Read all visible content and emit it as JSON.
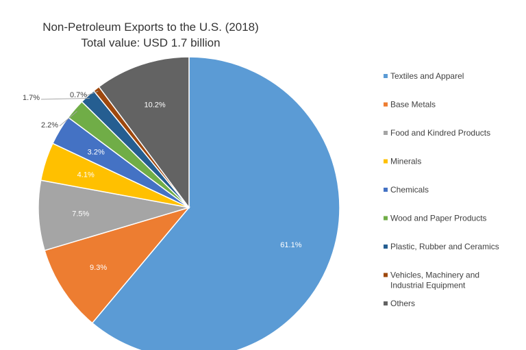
{
  "chart_data": {
    "type": "pie",
    "title": "Non-Petroleum Exports to the U.S. (2018)",
    "subtitle": "Total value: USD 1.7 billion",
    "legend_position": "right",
    "start_angle_deg": 0,
    "direction": "clockwise",
    "slices": [
      {
        "label": "Textiles and Apparel",
        "value": 61.1,
        "display": "61.1%",
        "color": "#5B9BD5",
        "label_inside": true
      },
      {
        "label": "Base Metals",
        "value": 9.3,
        "display": "9.3%",
        "color": "#ED7D31",
        "label_inside": true
      },
      {
        "label": "Food and Kindred Products",
        "value": 7.5,
        "display": "7.5%",
        "color": "#A5A5A5",
        "label_inside": true
      },
      {
        "label": "Minerals",
        "value": 4.1,
        "display": "4.1%",
        "color": "#FFC000",
        "label_inside": true
      },
      {
        "label": "Chemicals",
        "value": 3.2,
        "display": "3.2%",
        "color": "#4472C4",
        "label_inside": true
      },
      {
        "label": "Wood and Paper Products",
        "value": 2.2,
        "display": "2.2%",
        "color": "#70AD47",
        "label_inside": false
      },
      {
        "label": "Plastic, Rubber and Ceramics",
        "value": 1.7,
        "display": "1.7%",
        "color": "#255E91",
        "label_inside": false
      },
      {
        "label": "Vehicles, Machinery and Industrial Equipment",
        "value": 0.7,
        "display": "0.7%",
        "color": "#9E480E",
        "label_inside": false
      },
      {
        "label": "Others",
        "value": 10.2,
        "display": "10.2%",
        "color": "#636363",
        "label_inside": true
      }
    ]
  }
}
